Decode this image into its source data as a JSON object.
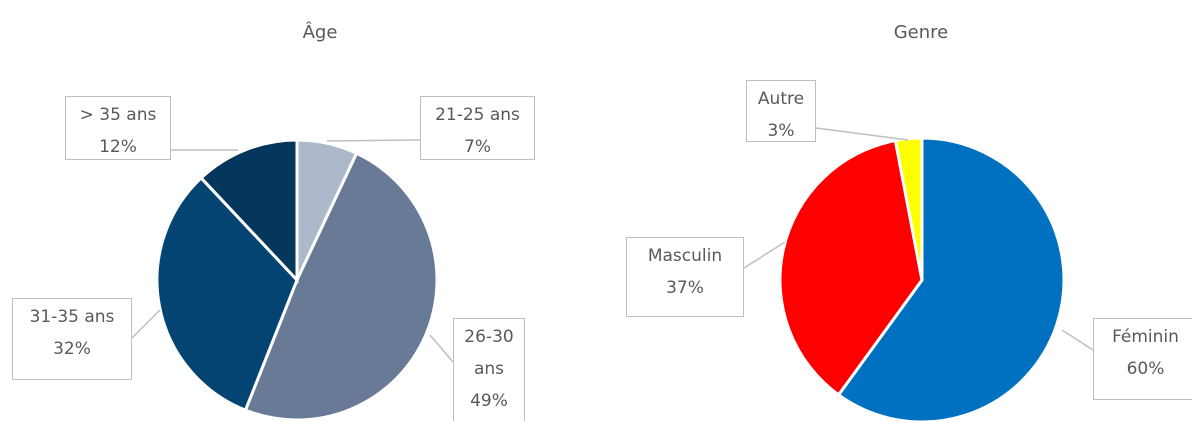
{
  "chart_data": [
    {
      "type": "pie",
      "title": "Âge",
      "categories": [
        "21-25 ans",
        "26-30 ans",
        "31-35 ans",
        "> 35 ans"
      ],
      "values": [
        7,
        49,
        32,
        12
      ],
      "value_labels": [
        "7%",
        "49%",
        "32%",
        "12%"
      ],
      "colors": [
        "#adb9ca",
        "#697a96",
        "#044472",
        "#05365c"
      ]
    },
    {
      "type": "pie",
      "title": "Genre",
      "categories": [
        "Féminin",
        "Masculin",
        "Autre"
      ],
      "values": [
        60,
        37,
        3
      ],
      "value_labels": [
        "60%",
        "37%",
        "3%"
      ],
      "colors": [
        "#0070c0",
        "#ff0000",
        "#ffff00"
      ]
    }
  ]
}
